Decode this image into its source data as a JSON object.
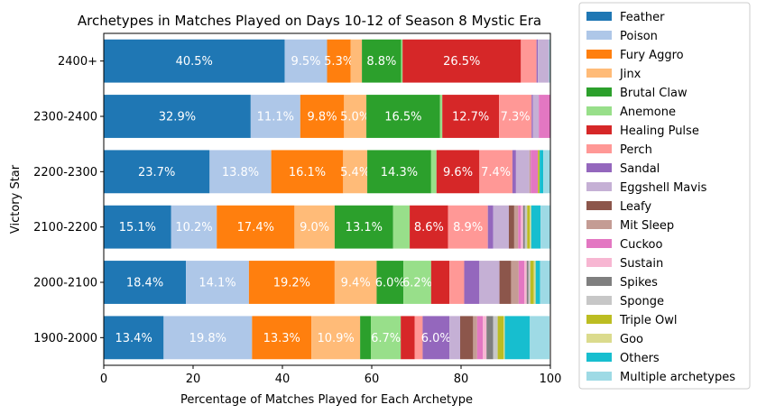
{
  "chart_data": {
    "type": "bar",
    "orientation": "horizontal",
    "stacked": true,
    "title": "Archetypes in Matches Played on Days 10-12 of Season 8 Mystic Era",
    "xlabel": "Percentage of Matches Played for Each Archetype",
    "ylabel": "Victory Star",
    "xlim": [
      0,
      100
    ],
    "xticks": [
      "0",
      "20",
      "40",
      "60",
      "80",
      "100"
    ],
    "categories": [
      "2400+",
      "2300-2400",
      "2200-2300",
      "2100-2200",
      "2000-2100",
      "1900-2000"
    ],
    "legend_position": "outside-right",
    "series": [
      {
        "name": "Feather",
        "color": "#1f77b4",
        "values": [
          40.5,
          32.9,
          23.7,
          15.1,
          18.4,
          13.4
        ],
        "labels": [
          "40.5%",
          "32.9%",
          "23.7%",
          "15.1%",
          "18.4%",
          "13.4%"
        ]
      },
      {
        "name": "Poison",
        "color": "#aec7e8",
        "values": [
          9.5,
          11.1,
          13.8,
          10.2,
          14.1,
          19.8
        ],
        "labels": [
          "9.5%",
          "11.1%",
          "13.8%",
          "10.2%",
          "14.1%",
          "19.8%"
        ]
      },
      {
        "name": "Fury Aggro",
        "color": "#ff7f0e",
        "values": [
          5.3,
          9.8,
          16.1,
          17.4,
          19.2,
          13.3
        ],
        "labels": [
          "5.3%",
          "9.8%",
          "16.1%",
          "17.4%",
          "19.2%",
          "13.3%"
        ]
      },
      {
        "name": "Jinx",
        "color": "#ffbb78",
        "values": [
          2.5,
          5.0,
          5.4,
          9.0,
          9.4,
          10.9
        ],
        "labels": [
          "",
          "5.0%",
          "5.4%",
          "9.0%",
          "9.4%",
          "10.9%"
        ]
      },
      {
        "name": "Brutal Claw",
        "color": "#2ca02c",
        "values": [
          8.8,
          16.5,
          14.3,
          13.1,
          6.0,
          2.4
        ],
        "labels": [
          "8.8%",
          "16.5%",
          "14.3%",
          "13.1%",
          "6.0%",
          ""
        ]
      },
      {
        "name": "Anemone",
        "color": "#98df8a",
        "values": [
          0.3,
          0.5,
          1.2,
          3.7,
          6.2,
          6.7
        ],
        "labels": [
          "",
          "",
          "",
          "",
          "6.2%",
          "6.7%"
        ]
      },
      {
        "name": "Healing Pulse",
        "color": "#d62728",
        "values": [
          26.5,
          12.7,
          9.6,
          8.6,
          4.1,
          3.1
        ],
        "labels": [
          "26.5%",
          "12.7%",
          "9.6%",
          "8.6%",
          "",
          ""
        ]
      },
      {
        "name": "Perch",
        "color": "#ff9896",
        "values": [
          3.5,
          7.3,
          7.4,
          8.9,
          3.3,
          1.8
        ],
        "labels": [
          "",
          "7.3%",
          "7.4%",
          "8.9%",
          "",
          ""
        ]
      },
      {
        "name": "Sandal",
        "color": "#9467bd",
        "values": [
          0.3,
          0.3,
          0.8,
          1.2,
          3.4,
          6.0
        ],
        "labels": [
          "",
          "",
          "",
          "",
          "",
          "6.0%"
        ]
      },
      {
        "name": "Eggshell Mavis",
        "color": "#c5b0d5",
        "values": [
          2.5,
          1.3,
          3.0,
          3.5,
          4.5,
          2.4
        ],
        "labels": [
          "",
          "",
          "",
          "",
          "",
          ""
        ]
      },
      {
        "name": "Leafy",
        "color": "#8c564b",
        "values": [
          0,
          0,
          0,
          1.2,
          2.6,
          2.9
        ],
        "labels": [
          "",
          "",
          "",
          "",
          "",
          ""
        ]
      },
      {
        "name": "Mit Sleep",
        "color": "#c49c94",
        "values": [
          0,
          0,
          0.3,
          0.9,
          1.7,
          0.9
        ],
        "labels": [
          "",
          "",
          "",
          "",
          "",
          ""
        ]
      },
      {
        "name": "Cuckoo",
        "color": "#e377c2",
        "values": [
          0,
          2.6,
          1.6,
          0.6,
          1.3,
          1.3
        ],
        "labels": [
          "",
          "",
          "",
          "",
          "",
          ""
        ]
      },
      {
        "name": "Sustain",
        "color": "#f7b6d2",
        "values": [
          0,
          0,
          0,
          0.5,
          0.5,
          0.8
        ],
        "labels": [
          "",
          "",
          "",
          "",
          "",
          ""
        ]
      },
      {
        "name": "Spikes",
        "color": "#7f7f7f",
        "values": [
          0,
          0,
          0,
          0.4,
          0.4,
          1.5
        ],
        "labels": [
          "",
          "",
          "",
          "",
          "",
          ""
        ]
      },
      {
        "name": "Sponge",
        "color": "#c7c7c7",
        "values": [
          0,
          0,
          0,
          0.5,
          0.4,
          1.0
        ],
        "labels": [
          "",
          "",
          "",
          "",
          "",
          ""
        ]
      },
      {
        "name": "Triple Owl",
        "color": "#bcbd22",
        "values": [
          0,
          0,
          0.4,
          0.6,
          0.8,
          1.3
        ],
        "labels": [
          "",
          "",
          "",
          "",
          "",
          ""
        ]
      },
      {
        "name": "Goo",
        "color": "#dbdb8d",
        "values": [
          0,
          0,
          0,
          0.3,
          0.4,
          0.3
        ],
        "labels": [
          "",
          "",
          "",
          "",
          "",
          ""
        ]
      },
      {
        "name": "Others",
        "color": "#17becf",
        "values": [
          0,
          0,
          0.8,
          2.1,
          1.0,
          5.6
        ],
        "labels": [
          "",
          "",
          "",
          "",
          "",
          ""
        ]
      },
      {
        "name": "Multiple archetypes",
        "color": "#9edae5",
        "values": [
          0.3,
          0,
          1.6,
          2.7,
          2.7,
          4.4
        ],
        "labels": [
          "",
          "",
          "",
          "",
          "",
          ""
        ]
      }
    ]
  }
}
